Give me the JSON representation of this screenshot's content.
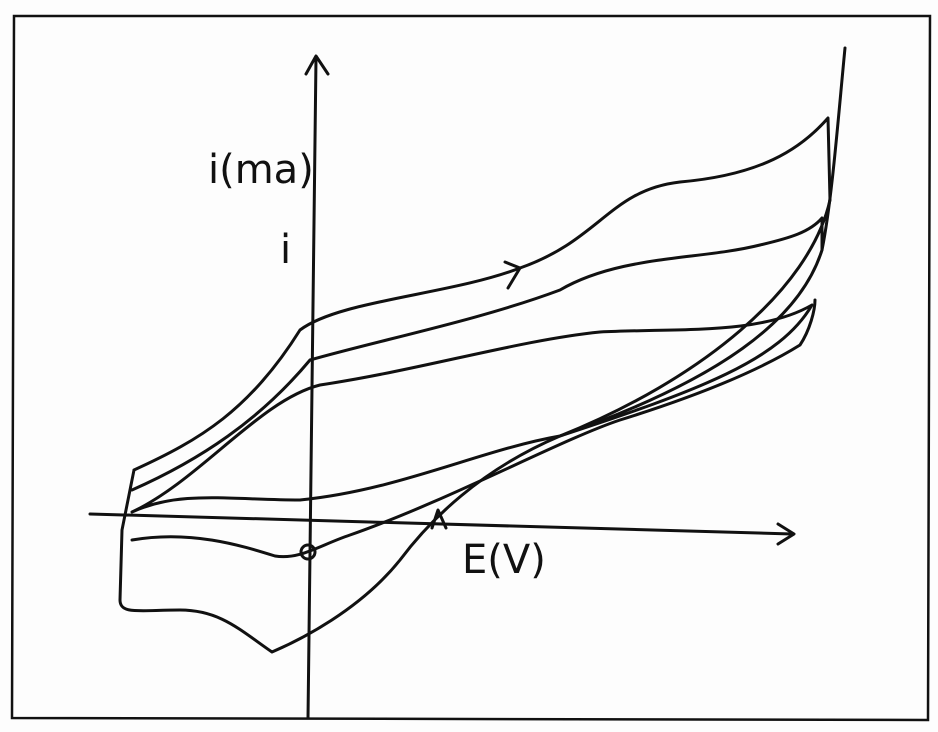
{
  "labels": {
    "y_axis": "i(ma)",
    "y_axis_short": "i",
    "x_axis": "E(V)"
  }
}
